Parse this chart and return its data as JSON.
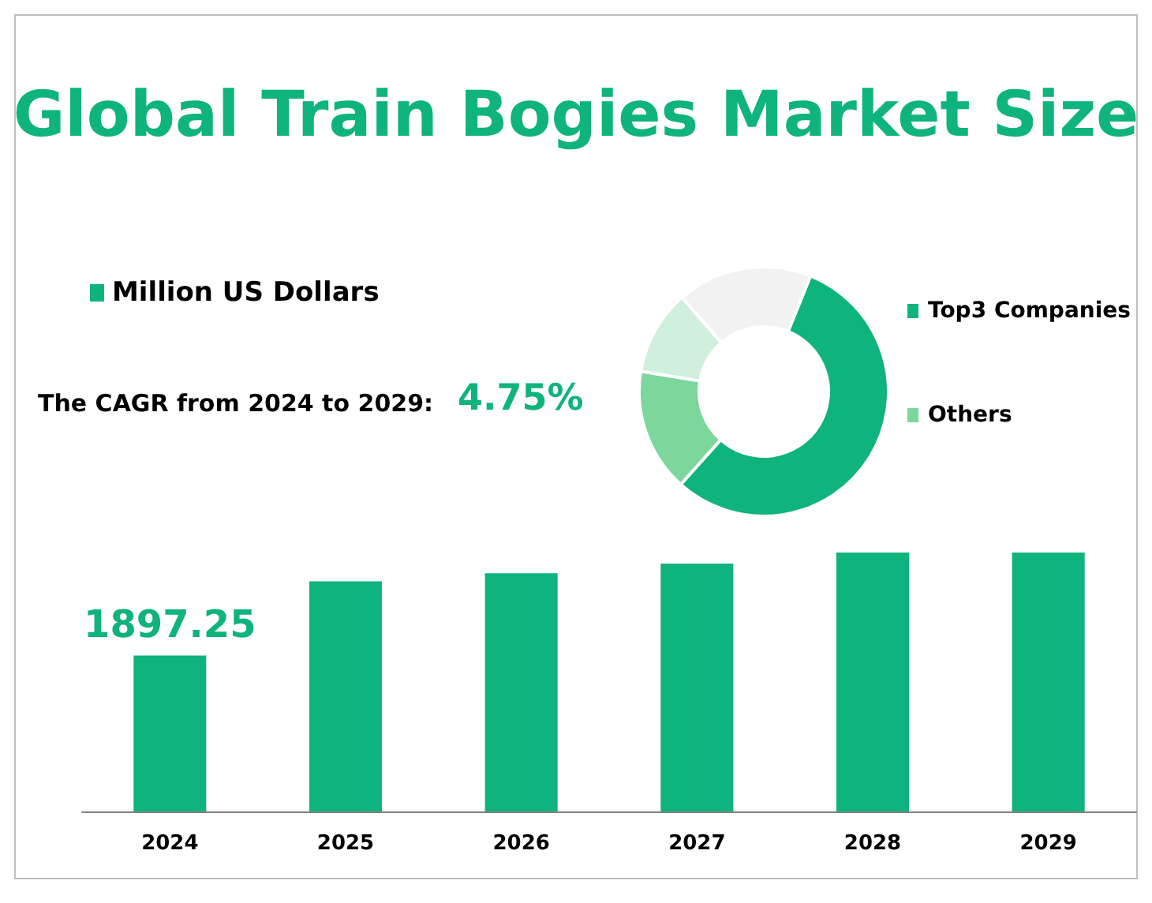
{
  "chart_data": [
    {
      "type": "bar",
      "title": "Global Train Bogies Market Size",
      "categories": [
        "2024",
        "2025",
        "2026",
        "2027",
        "2028",
        "2029"
      ],
      "ylim": [
        0,
        3151
      ],
      "tick_labels": "x",
      "series": [
        {
          "name": "Million US Dollars",
          "color": "#0fb37d",
          "values": [
            1897.25,
            2800,
            2900,
            3017,
            3151,
            3151
          ],
          "value_labels": [
            "1897.25",
            null,
            null,
            null,
            null,
            null
          ]
        }
      ],
      "annotations": [
        "The CAGR from 2024 to 2029:",
        "4.75%"
      ],
      "legend": "top left",
      "grid": false
    },
    {
      "type": "donut",
      "categories": [
        "Top3 Companies",
        "Others",
        null,
        null
      ],
      "values": [
        55.5,
        16,
        11,
        17.5
      ],
      "colors": [
        "#0fb37d",
        "#7dd69b",
        "#d0efdc",
        "#f2f2f2"
      ],
      "legend": "right"
    }
  ]
}
